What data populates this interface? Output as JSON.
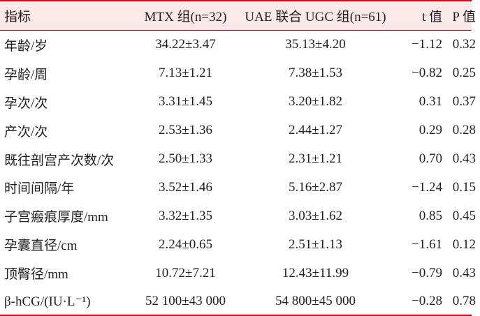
{
  "table": {
    "headers": {
      "label": "指标",
      "mtx": "MTX 组(n=32)",
      "uae": "UAE 联合 UGC 组(n=61)",
      "t": "t 值",
      "p": "P 值"
    },
    "rows": [
      {
        "label": "年龄/岁",
        "mtx": "34.22±3.47",
        "uae": "35.13±4.20",
        "t": "−1.12",
        "p": "0.32"
      },
      {
        "label": "孕龄/周",
        "mtx": "7.13±1.21",
        "uae": "7.38±1.53",
        "t": "−0.82",
        "p": "0.25"
      },
      {
        "label": "孕次/次",
        "mtx": "3.31±1.45",
        "uae": "3.20±1.82",
        "t": "0.31",
        "p": "0.37"
      },
      {
        "label": "产次/次",
        "mtx": "2.53±1.36",
        "uae": "2.44±1.27",
        "t": "0.29",
        "p": "0.28"
      },
      {
        "label": "既往剖宫产次数/次",
        "mtx": "2.50±1.33",
        "uae": "2.31±1.21",
        "t": "0.70",
        "p": "0.43"
      },
      {
        "label": "时间间隔/年",
        "mtx": "3.52±1.46",
        "uae": "5.16±2.87",
        "t": "−1.24",
        "p": "0.15"
      },
      {
        "label": "子宫瘢痕厚度/mm",
        "mtx": "3.32±1.35",
        "uae": "3.03±1.62",
        "t": "0.85",
        "p": "0.45"
      },
      {
        "label": "孕囊直径/cm",
        "mtx": "2.24±0.65",
        "uae": "2.51±1.13",
        "t": "−1.61",
        "p": "0.12"
      },
      {
        "label": "顶臀径/mm",
        "mtx": "10.72±7.21",
        "uae": "12.43±11.99",
        "t": "−0.79",
        "p": "0.43"
      },
      {
        "label": "β-hCG/(IU·L⁻¹)",
        "mtx": "52 100±43 000",
        "uae": "54 800±45 000",
        "t": "−0.28",
        "p": "0.78"
      }
    ]
  },
  "colors": {
    "header_background": "#fce9ea",
    "rule": "#e60012",
    "text": "#231f20"
  }
}
